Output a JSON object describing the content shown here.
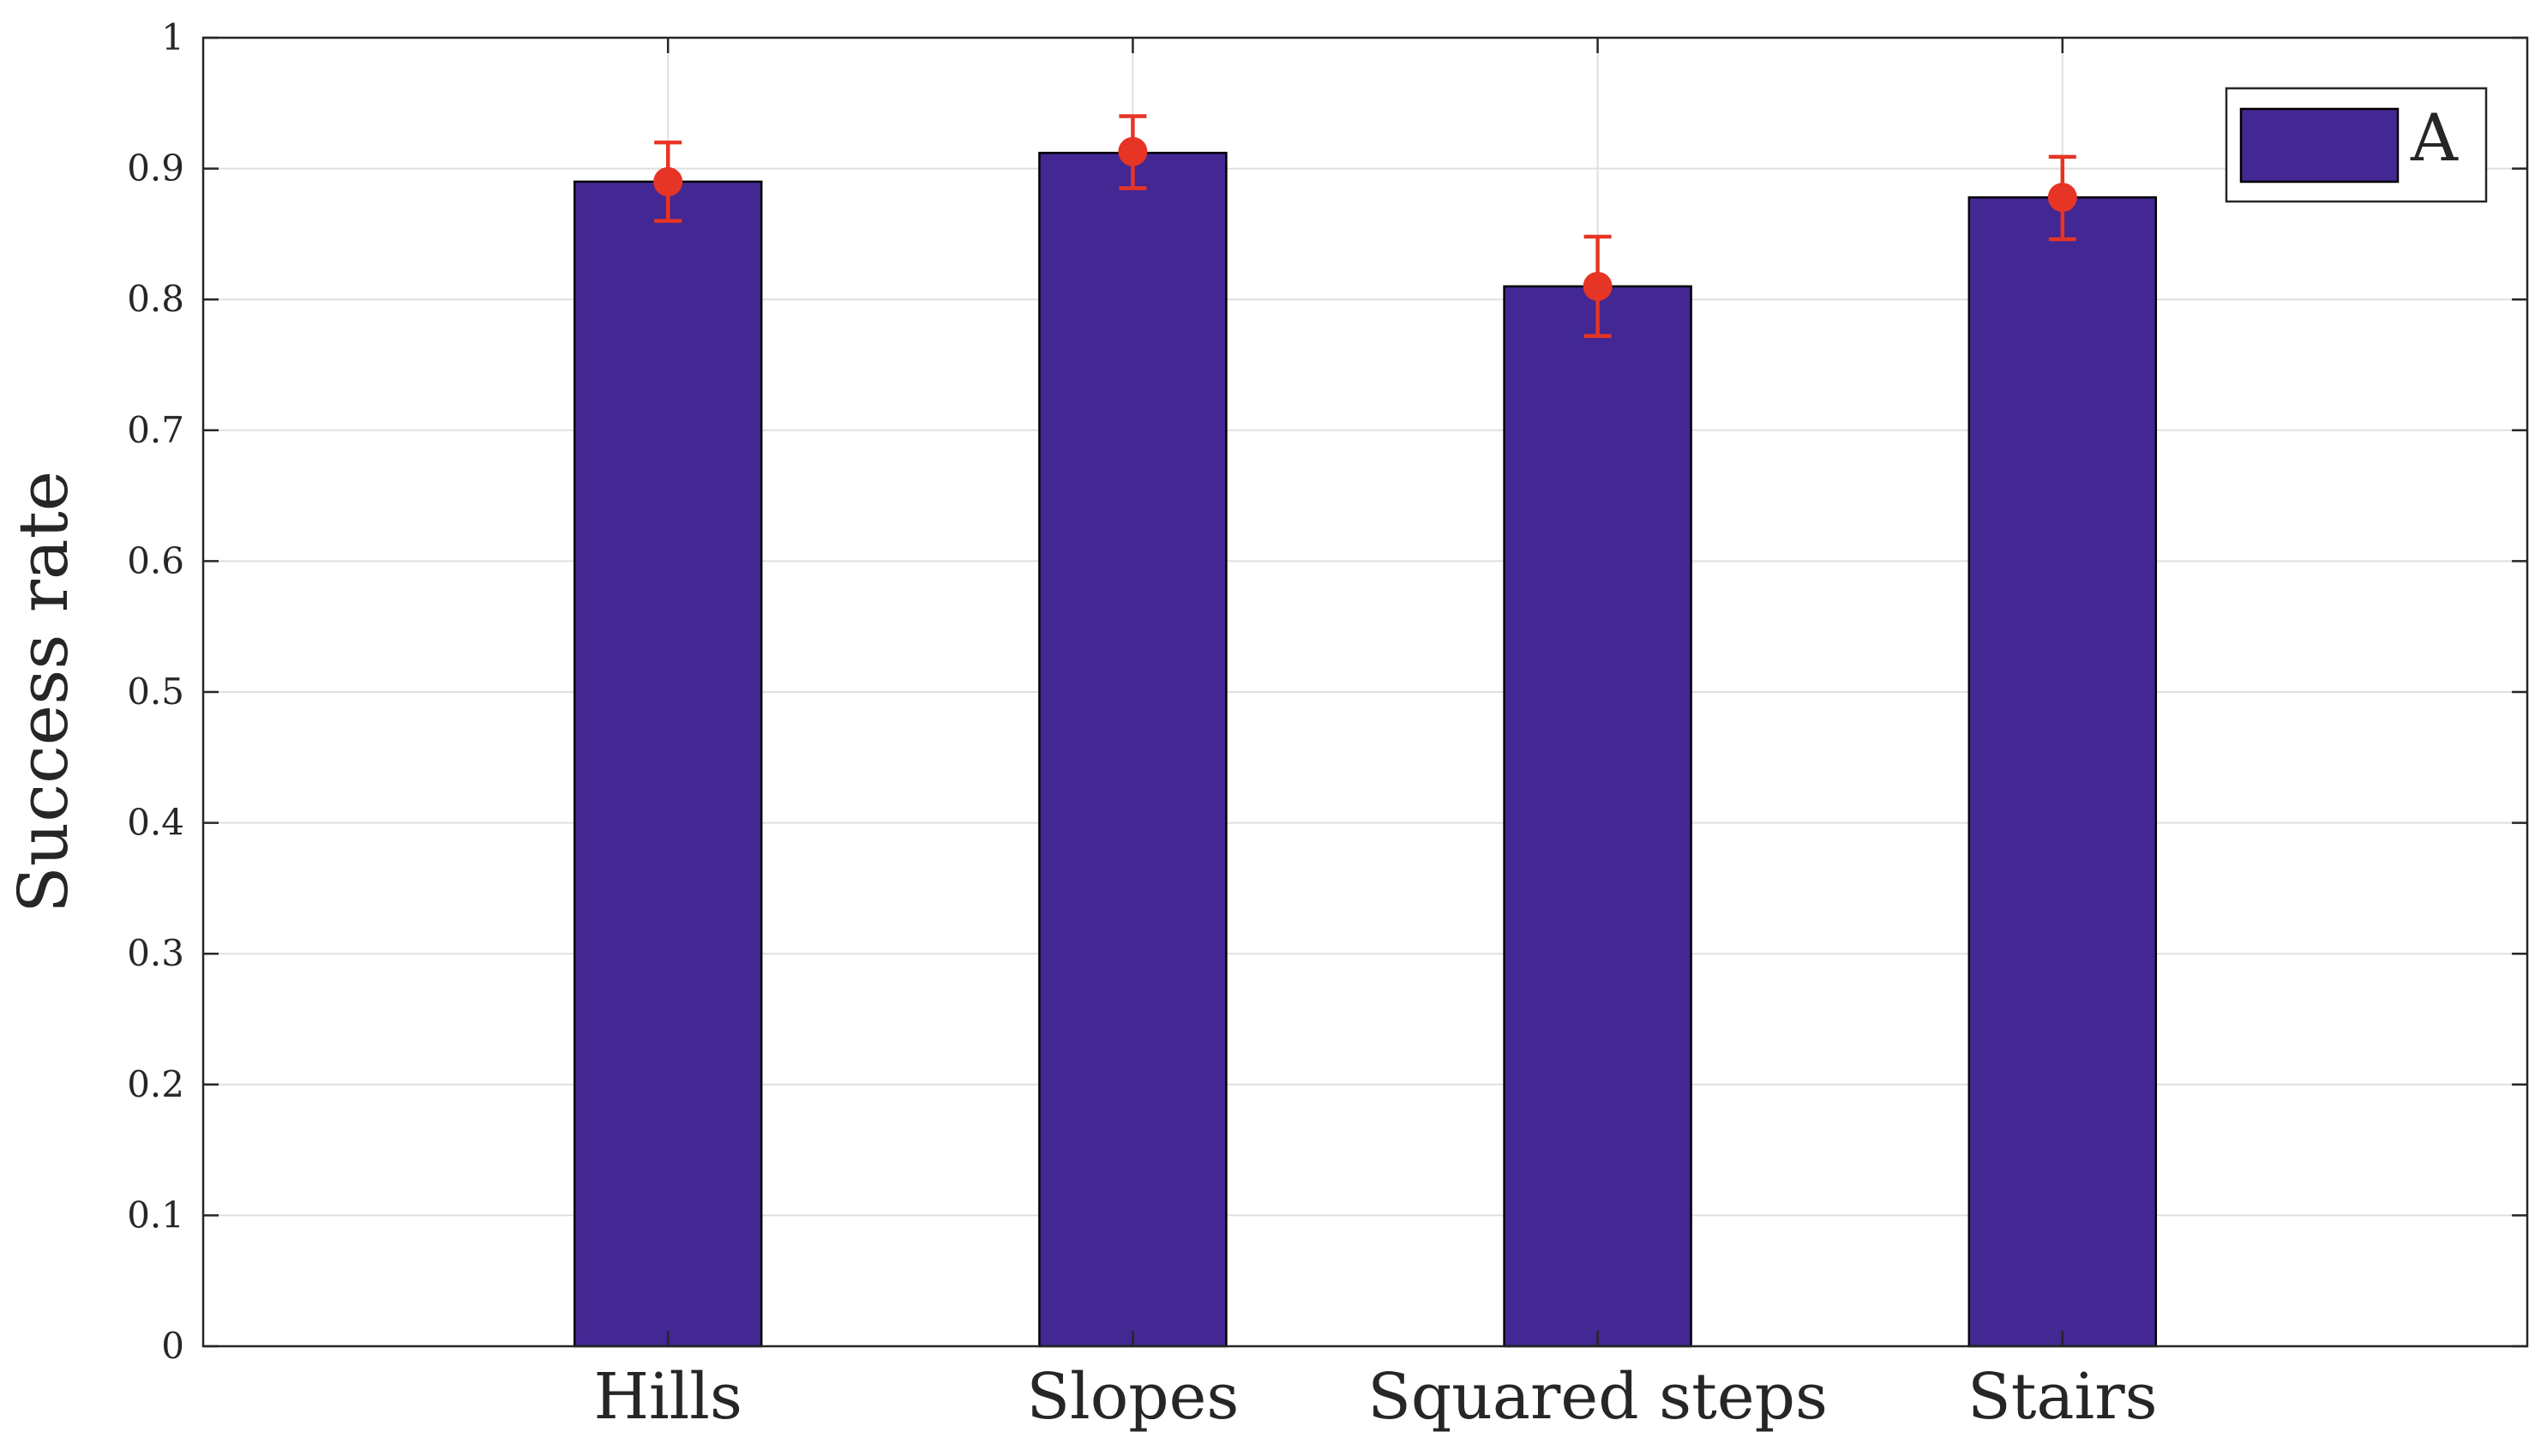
{
  "chart_data": {
    "type": "bar",
    "title": "",
    "xlabel": "",
    "ylabel": "Success rate",
    "categories": [
      "Hills",
      "Slopes",
      "Squared steps",
      "Stairs"
    ],
    "series": [
      {
        "name": "A",
        "values": [
          0.89,
          0.912,
          0.81,
          0.878
        ],
        "error_markers": [
          0.89,
          0.913,
          0.81,
          0.878
        ],
        "error_lower": [
          0.86,
          0.885,
          0.772,
          0.846
        ],
        "error_upper": [
          0.92,
          0.94,
          0.848,
          0.909
        ]
      }
    ],
    "ylim": [
      0,
      1
    ],
    "yticks": [
      "0",
      "0.1",
      "0.2",
      "0.3",
      "0.4",
      "0.5",
      "0.6",
      "0.7",
      "0.8",
      "0.9",
      "1"
    ],
    "grid": true,
    "legend": {
      "position": "top-right",
      "entries": [
        "A"
      ]
    },
    "colors": {
      "bar_fill": "#432792",
      "bar_edge": "#000000",
      "error": "#e63525",
      "grid": "#dfdfdf",
      "axis": "#262626"
    }
  }
}
